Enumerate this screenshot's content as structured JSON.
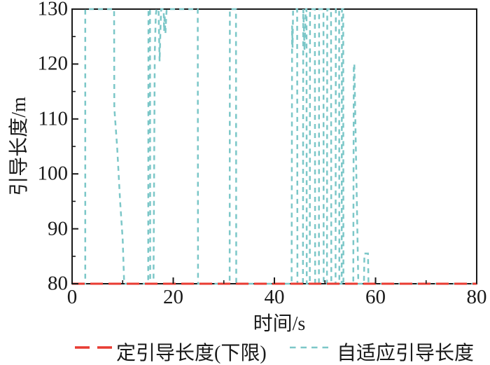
{
  "figure": {
    "background": "#ffffff",
    "text_color": "#1a1a1a",
    "frame_color": "#1a1a1a",
    "accent_red": "#e83b32",
    "accent_teal": "#7cc7c8"
  },
  "chart_data": {
    "type": "line",
    "title": "",
    "xlabel": "时间/s",
    "ylabel": "引导长度/m",
    "xlim": [
      0,
      80
    ],
    "ylim": [
      80,
      130
    ],
    "x_major_ticks": [
      "0",
      "20",
      "40",
      "60",
      "80"
    ],
    "x_minor_ticks": [
      10,
      30,
      50,
      70
    ],
    "y_major_ticks": [
      "80",
      "90",
      "100",
      "110",
      "120",
      "130"
    ],
    "y_minor_ticks": [
      85,
      95,
      105,
      115,
      125
    ],
    "grid": false,
    "legend_position": "bottom",
    "series": [
      {
        "name": "定引导长度(下限)",
        "color": "#e83b32",
        "dash": [
          18,
          8
        ],
        "width": 3,
        "points": [
          [
            0,
            80
          ],
          [
            80,
            80
          ]
        ]
      },
      {
        "name": "自适应引导长度",
        "color": "#7cc7c8",
        "dash": [
          7,
          6
        ],
        "width": 2.5,
        "points": [
          [
            1.8,
            80
          ],
          [
            2.6,
            80
          ],
          [
            2.6,
            130
          ],
          [
            8.3,
            130
          ],
          [
            8.35,
            112
          ],
          [
            8.9,
            105
          ],
          [
            9.5,
            95
          ],
          [
            10.0,
            88
          ],
          [
            10.3,
            80
          ],
          [
            15.05,
            80
          ],
          [
            15.1,
            130
          ],
          [
            15.4,
            130
          ],
          [
            15.45,
            80
          ],
          [
            16.1,
            80
          ],
          [
            16.35,
            122
          ],
          [
            16.55,
            129
          ],
          [
            16.7,
            130
          ],
          [
            17.1,
            130
          ],
          [
            17.3,
            120.5
          ],
          [
            17.5,
            127
          ],
          [
            17.6,
            130
          ],
          [
            18.1,
            130
          ],
          [
            18.2,
            126
          ],
          [
            18.3,
            129
          ],
          [
            18.45,
            125.5
          ],
          [
            18.6,
            128.5
          ],
          [
            18.7,
            130
          ],
          [
            24.85,
            130
          ],
          [
            24.9,
            80
          ],
          [
            31.15,
            80
          ],
          [
            31.2,
            130
          ],
          [
            32.4,
            130
          ],
          [
            32.45,
            80
          ],
          [
            43.4,
            80
          ],
          [
            43.5,
            127
          ],
          [
            43.6,
            123
          ],
          [
            43.7,
            130
          ],
          [
            44.5,
            130
          ],
          [
            44.55,
            80
          ],
          [
            45.65,
            80
          ],
          [
            45.7,
            130
          ],
          [
            45.85,
            126
          ],
          [
            45.95,
            122.5
          ],
          [
            46.1,
            127
          ],
          [
            46.2,
            130
          ],
          [
            46.35,
            130
          ],
          [
            46.4,
            80
          ],
          [
            47.0,
            80
          ],
          [
            47.05,
            130
          ],
          [
            48.0,
            130
          ],
          [
            48.05,
            80
          ],
          [
            48.8,
            80
          ],
          [
            48.85,
            130
          ],
          [
            49.7,
            130
          ],
          [
            49.75,
            80
          ],
          [
            50.4,
            80
          ],
          [
            50.45,
            130
          ],
          [
            51.2,
            130
          ],
          [
            51.25,
            80
          ],
          [
            52.1,
            80
          ],
          [
            52.15,
            130
          ],
          [
            52.8,
            130
          ],
          [
            52.85,
            80
          ],
          [
            53.3,
            80
          ],
          [
            53.35,
            130
          ],
          [
            53.6,
            130
          ],
          [
            53.65,
            80
          ],
          [
            55.6,
            80
          ],
          [
            55.7,
            120
          ],
          [
            55.8,
            120
          ],
          [
            56.6,
            80
          ],
          [
            57.7,
            80
          ],
          [
            57.8,
            85.5
          ],
          [
            58.5,
            85.5
          ],
          [
            58.6,
            80
          ],
          [
            80,
            80
          ]
        ]
      }
    ]
  },
  "legend": {
    "items": [
      {
        "label": "定引导长度(下限)",
        "swatch": "red-long-dash"
      },
      {
        "label": "自适应引导长度",
        "swatch": "teal-short-dash"
      }
    ]
  }
}
